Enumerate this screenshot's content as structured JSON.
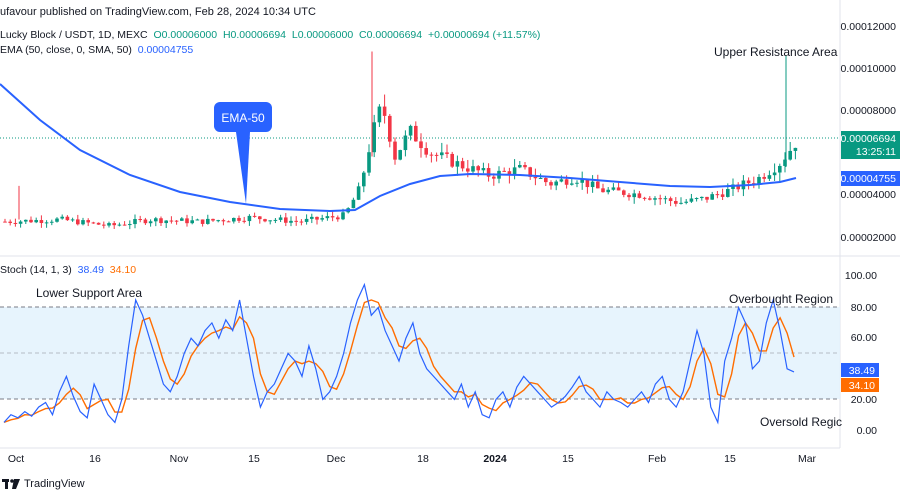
{
  "publisher": "ufavour published on TradingView.com, Feb 28, 2024 10:34 UTC",
  "legend": {
    "symbol": "Lucky Block / USDT, 1D, MEXC",
    "open": "O0.00006000",
    "high": "H0.00006694",
    "low": "L0.00006000",
    "close": "C0.00006694",
    "change": "+0.00000694 (+11.57%)",
    "ema_label": "EMA (50, close, 0, SMA, 50)",
    "ema_value": "0.00004755"
  },
  "stoch_legend": {
    "label": "Stoch (14, 1, 3)",
    "k_value": "38.49",
    "d_value": "34.10"
  },
  "price_axis": {
    "ticks": [
      "0.00012000",
      "0.00010000",
      "0.00008000",
      "0.00004000",
      "0.00002000"
    ],
    "current_price": "0.00006694",
    "countdown": "13:25:11",
    "ema_badge": "0.00004755"
  },
  "stoch_axis": {
    "ticks": [
      "100.00",
      "80.00",
      "60.00",
      "20.00",
      "0.00"
    ],
    "k_badge": "38.49",
    "d_badge": "34.10"
  },
  "time_axis": [
    "Oct",
    "16",
    "Nov",
    "15",
    "Dec",
    "18",
    "2024",
    "15",
    "Feb",
    "15",
    "Mar"
  ],
  "annotations": {
    "ema_callout": "EMA-50",
    "upper_resistance": "Upper Resistance Area",
    "lower_support": "Lower Support Area",
    "overbought": "Overbought Region",
    "oversold": "Oversold Regic"
  },
  "footer": {
    "brand": "TradingView"
  },
  "colors": {
    "up": "#089981",
    "down": "#f23645",
    "ema": "#2962ff",
    "stoch_k": "#2962ff",
    "stoch_d": "#ff6d00",
    "band_fill": "#e3f2fd",
    "callout": "#2962ff"
  }
}
